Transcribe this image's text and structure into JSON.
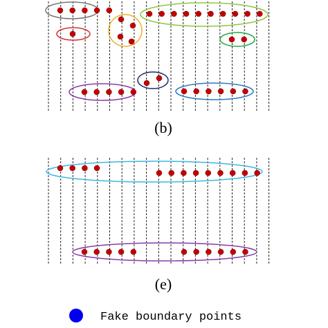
{
  "panels": [
    {
      "label": "(b)"
    },
    {
      "label": "(e)"
    }
  ],
  "legend": {
    "label": "Fake boundary points"
  }
}
